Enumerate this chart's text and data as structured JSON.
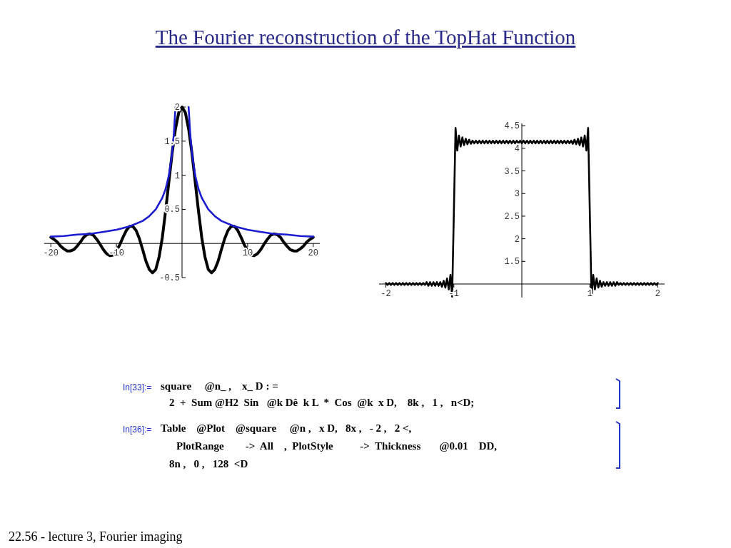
{
  "chart_data": [
    {
      "type": "line",
      "title": "The Fourier reconstruction of the TopHat Function",
      "xlim": [
        -21,
        21
      ],
      "ylim": [
        -0.5,
        2
      ],
      "xticks": [
        -20,
        -10,
        10,
        20
      ],
      "yticks": [
        -0.5,
        0.5,
        1,
        1.5,
        2
      ],
      "series": [
        {
          "color": "#000000",
          "x": [
            -20,
            -19.5,
            -19,
            -18.5,
            -18,
            -17.5,
            -17,
            -16.5,
            -16,
            -15.5,
            -15,
            -14.5,
            -14,
            -13.5,
            -13,
            -12.5,
            -12,
            -11.5,
            -11,
            -10.5,
            -10,
            -9.5,
            -9,
            -8.5,
            -8,
            -7.5,
            -7,
            -6.5,
            -6,
            -5.5,
            -5,
            -4.5,
            -4,
            -3.5,
            -3,
            -2.5,
            -2,
            -1.5,
            -1,
            -0.5,
            0,
            0.5,
            1,
            1.5,
            2,
            2.5,
            3,
            3.5,
            4,
            4.5,
            5,
            5.5,
            6,
            6.5,
            7,
            7.5,
            8,
            8.5,
            9,
            9.5,
            10,
            10.5,
            11,
            11.5,
            12,
            12.5,
            13,
            13.5,
            14,
            14.5,
            15,
            15.5,
            16,
            16.5,
            17,
            17.5,
            18,
            18.5,
            19,
            19.5,
            20
          ],
          "values": [
            0.09,
            0.06,
            0.02,
            -0.04,
            -0.08,
            -0.11,
            -0.11,
            -0.09,
            -0.04,
            0.02,
            0.09,
            0.13,
            0.14,
            0.12,
            0.06,
            -0.01,
            -0.09,
            -0.15,
            -0.18,
            -0.17,
            -0.11,
            -0.02,
            0.09,
            0.19,
            0.25,
            0.25,
            0.19,
            0.07,
            -0.09,
            -0.26,
            -0.38,
            -0.43,
            -0.38,
            -0.2,
            0.09,
            0.48,
            0.91,
            1.33,
            1.68,
            1.92,
            2,
            1.92,
            1.68,
            1.33,
            0.91,
            0.48,
            0.09,
            -0.2,
            -0.38,
            -0.43,
            -0.38,
            -0.26,
            -0.09,
            0.07,
            0.19,
            0.25,
            0.25,
            0.19,
            0.09,
            -0.02,
            -0.11,
            -0.17,
            -0.18,
            -0.15,
            -0.09,
            -0.01,
            0.06,
            0.12,
            0.14,
            0.13,
            0.09,
            0.02,
            -0.04,
            -0.09,
            -0.11,
            -0.11,
            -0.08,
            -0.04,
            0.02,
            0.06,
            0.09
          ]
        },
        {
          "color": "#1a1ad0",
          "x": [
            -20,
            -18,
            -16,
            -14,
            -12,
            -10,
            -8,
            -6,
            -5,
            -4,
            -3,
            -2.5,
            -2,
            -1.5,
            -1.25,
            -1,
            0,
            1,
            1.25,
            1.5,
            2,
            2.5,
            3,
            4,
            5,
            6,
            8,
            10,
            12,
            14,
            16,
            18,
            20
          ],
          "values": [
            0.1,
            0.11,
            0.13,
            0.14,
            0.17,
            0.2,
            0.25,
            0.33,
            0.4,
            0.5,
            0.67,
            0.8,
            1,
            1.33,
            1.6,
            2,
            null,
            2,
            1.6,
            1.33,
            1,
            0.8,
            0.67,
            0.5,
            0.4,
            0.33,
            0.25,
            0.2,
            0.17,
            0.14,
            0.13,
            0.11,
            0.1
          ]
        }
      ]
    },
    {
      "type": "line",
      "xlim": [
        -2.1,
        2.1
      ],
      "ylim": [
        0.7,
        4.55
      ],
      "xticks": [
        -2,
        -1,
        1,
        2
      ],
      "yticks": [
        1.5,
        2,
        2.5,
        3,
        3.5,
        4,
        4.5
      ],
      "series": [
        {
          "color": "#000000",
          "x": [
            -2,
            -1.975,
            -1.95,
            -1.925,
            -1.9,
            -1.875,
            -1.85,
            -1.825,
            -1.8,
            -1.775,
            -1.75,
            -1.725,
            -1.7,
            -1.675,
            -1.65,
            -1.625,
            -1.6,
            -1.575,
            -1.55,
            -1.525,
            -1.5,
            -1.475,
            -1.45,
            -1.425,
            -1.4,
            -1.375,
            -1.35,
            -1.325,
            -1.3,
            -1.275,
            -1.25,
            -1.225,
            -1.2,
            -1.175,
            -1.15,
            -1.125,
            -1.1,
            -1.075,
            -1.05,
            -1.025,
            -1,
            -0.975,
            -0.95,
            -0.925,
            -0.9,
            -0.875,
            -0.85,
            -0.825,
            -0.8,
            -0.775,
            -0.75,
            -0.725,
            -0.7,
            -0.675,
            -0.65,
            -0.625,
            -0.6,
            -0.575,
            -0.55,
            -0.525,
            -0.5,
            -0.475,
            -0.45,
            -0.425,
            -0.4,
            -0.375,
            -0.35,
            -0.325,
            -0.3,
            -0.275,
            -0.25,
            -0.225,
            -0.2,
            -0.175,
            -0.15,
            -0.125,
            -0.1,
            -0.075,
            -0.05,
            -0.025,
            0,
            0.025,
            0.05,
            0.075,
            0.1,
            0.125,
            0.15,
            0.175,
            0.2,
            0.225,
            0.25,
            0.275,
            0.3,
            0.325,
            0.35,
            0.375,
            0.4,
            0.425,
            0.45,
            0.475,
            0.5,
            0.525,
            0.55,
            0.575,
            0.6,
            0.625,
            0.65,
            0.675,
            0.7,
            0.725,
            0.75,
            0.775,
            0.8,
            0.825,
            0.85,
            0.875,
            0.9,
            0.925,
            0.95,
            0.975,
            1,
            1.025,
            1.05,
            1.075,
            1.1,
            1.125,
            1.15,
            1.175,
            1.2,
            1.225,
            1.25,
            1.275,
            1.3,
            1.325,
            1.35,
            1.375,
            1.4,
            1.425,
            1.45,
            1.475,
            1.5,
            1.525,
            1.55,
            1.575,
            1.6,
            1.625,
            1.65,
            1.675,
            1.7,
            1.725,
            1.75,
            1.775,
            1.8,
            1.825,
            1.85,
            1.875,
            1.9,
            1.925,
            1.95,
            1.975,
            2
          ],
          "values": [
            1.02,
            0.98,
            1.02,
            0.98,
            1.02,
            0.98,
            1.02,
            0.98,
            1.02,
            0.98,
            1.02,
            0.98,
            1.02,
            0.98,
            1.02,
            0.98,
            1.02,
            0.98,
            1.02,
            0.98,
            1.02,
            0.98,
            1.02,
            0.98,
            1.04,
            0.96,
            1.04,
            0.96,
            1.04,
            0.96,
            1.04,
            0.96,
            1.04,
            0.94,
            1.07,
            0.92,
            1.12,
            0.88,
            1.2,
            0.72,
            2.57,
            4.45,
            3.95,
            4.28,
            4.04,
            4.24,
            4.07,
            4.21,
            4.09,
            4.19,
            4.1,
            4.17,
            4.11,
            4.17,
            4.11,
            4.17,
            4.11,
            4.17,
            4.11,
            4.17,
            4.11,
            4.17,
            4.11,
            4.17,
            4.11,
            4.17,
            4.11,
            4.17,
            4.11,
            4.17,
            4.11,
            4.17,
            4.11,
            4.17,
            4.11,
            4.17,
            4.11,
            4.17,
            4.11,
            4.17,
            4.11,
            4.17,
            4.11,
            4.17,
            4.11,
            4.17,
            4.11,
            4.17,
            4.11,
            4.17,
            4.11,
            4.17,
            4.11,
            4.17,
            4.11,
            4.17,
            4.11,
            4.17,
            4.11,
            4.17,
            4.11,
            4.17,
            4.11,
            4.17,
            4.11,
            4.17,
            4.11,
            4.17,
            4.11,
            4.17,
            4.1,
            4.19,
            4.09,
            4.21,
            4.07,
            4.24,
            4.04,
            4.28,
            3.95,
            4.45,
            2.57,
            0.72,
            1.2,
            0.88,
            1.12,
            0.92,
            1.07,
            0.94,
            1.04,
            0.96,
            1.04,
            0.96,
            1.04,
            0.96,
            1.04,
            0.96,
            1.04,
            0.98,
            1.02,
            0.98,
            1.02,
            0.98,
            1.02,
            0.98,
            1.02,
            0.98,
            1.02,
            0.98,
            1.02,
            0.98,
            1.02,
            0.98,
            1.02,
            0.98,
            1.02,
            0.98,
            1.02,
            0.98,
            1.02,
            0.98,
            1.02
          ]
        }
      ],
      "annotations": [
        "In[33]:=",
        "square     @n_ ,    x_ D : =",
        "2  +  Sum @H2  Sin   @k Dê  k L  *  Cos  @k  x D,    8k ,   1 ,   n<D;",
        "In[36]:=",
        "Table    @Plot    @square     @n ,   x D,   8x ,   - 2 ,   2 <,",
        "PlotRange        ->  All    ,  PlotStyle          ->  Thickness       @0.01    DD,",
        "8n ,   0 ,   128  <D",
        "22.56 - lecture 3, Fourier imaging"
      ]
    }
  ]
}
